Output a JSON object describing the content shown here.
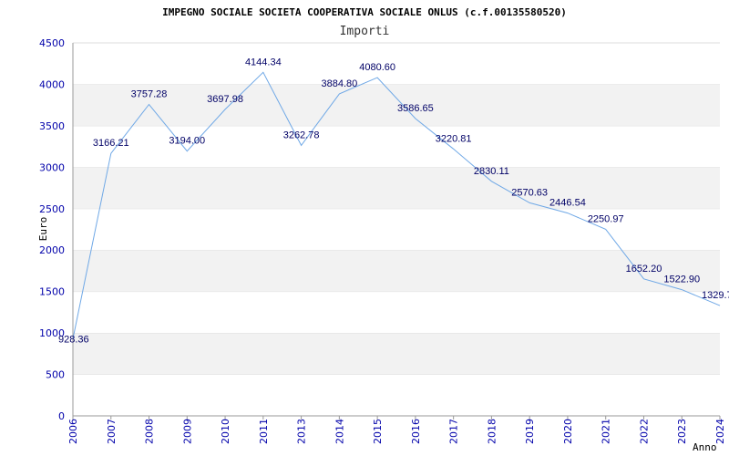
{
  "chart_data": {
    "type": "line",
    "title": "IMPEGNO SOCIALE SOCIETA COOPERATIVA SOCIALE ONLUS (c.f.00135580520)",
    "subtitle": "Importi",
    "xlabel": "Anno",
    "ylabel": "Euro",
    "ylim": [
      0,
      4500
    ],
    "yticks": [
      0,
      500,
      1000,
      1500,
      2000,
      2500,
      3000,
      3500,
      4000,
      4500
    ],
    "grid": "horizontal alternating bands",
    "categories": [
      "2006",
      "2007",
      "2008",
      "2009",
      "2010",
      "2011",
      "2013",
      "2014",
      "2015",
      "2016",
      "2017",
      "2018",
      "2019",
      "2020",
      "2021",
      "2022",
      "2023",
      "2024"
    ],
    "values": [
      928.36,
      3166.21,
      3757.28,
      3194.0,
      3697.98,
      4144.34,
      3262.78,
      3884.8,
      4080.6,
      3586.65,
      3220.81,
      2830.11,
      2570.63,
      2446.54,
      2250.97,
      1652.2,
      1522.9,
      1329.7
    ],
    "labels": [
      "928.36",
      "3166.21",
      "3757.28",
      "3194.00",
      "3697.98",
      "4144.34",
      "3262.78",
      "3884.80",
      "4080.60",
      "3586.65",
      "3220.81",
      "2830.11",
      "2570.63",
      "2446.54",
      "2250.97",
      "1652.20",
      "1522.90",
      "1329.7"
    ],
    "line_color": "#6fa8e6",
    "band_color": "#f2f2f2",
    "tick_color": "#0000aa"
  }
}
